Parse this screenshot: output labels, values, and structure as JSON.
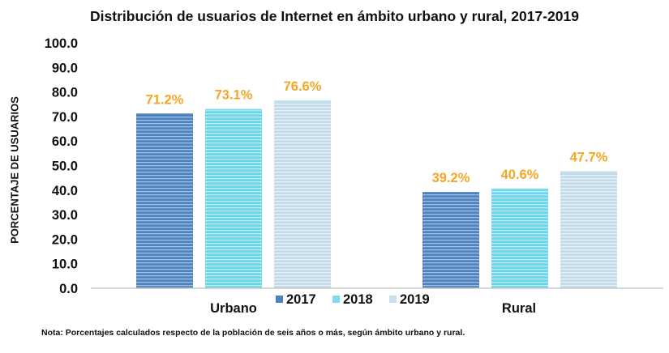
{
  "chart_data": {
    "type": "bar",
    "title": "Distribución de usuarios de Internet en ámbito urbano y rural, 2017-2019",
    "xlabel": "",
    "ylabel": "PORCENTAJE DE USUARIOS",
    "ylim": [
      0,
      100
    ],
    "yticks": [
      "0.0",
      "10.0",
      "20.0",
      "30.0",
      "40.0",
      "50.0",
      "60.0",
      "70.0",
      "80.0",
      "90.0",
      "100.0"
    ],
    "grid": false,
    "categories": [
      "Urbano",
      "Rural"
    ],
    "series": [
      {
        "name": "2017",
        "values": [
          71.2,
          39.2
        ],
        "labels": [
          "71.2%",
          "39.2%"
        ],
        "color": "#4f81bd"
      },
      {
        "name": "2018",
        "values": [
          73.1,
          40.6
        ],
        "labels": [
          "73.1%",
          "40.6%"
        ],
        "color": "#7fdcef"
      },
      {
        "name": "2019",
        "values": [
          76.6,
          47.7
        ],
        "labels": [
          "76.6%",
          "47.7%"
        ],
        "color": "#c8dfec"
      }
    ],
    "data_label_color": "#f5a623",
    "legend_position": "bottom-center",
    "note": "Nota: Porcentajes calculados respecto de la población de seis años o más, según ámbito urbano y rural."
  }
}
